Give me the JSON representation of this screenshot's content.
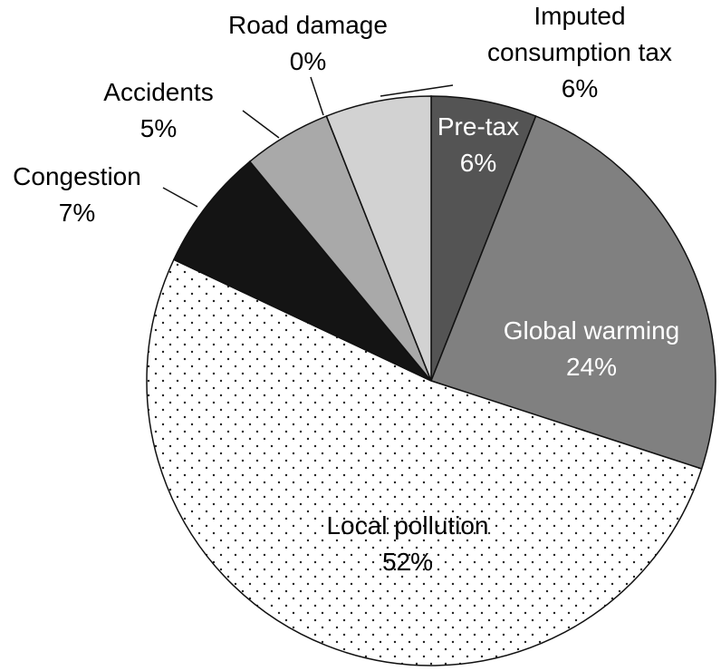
{
  "chart_data": {
    "type": "pie",
    "categories": [
      "Pre-tax",
      "Global warming",
      "Local pollution",
      "Congestion",
      "Accidents",
      "Road damage",
      "Imputed consumption tax"
    ],
    "values": [
      6,
      24,
      52,
      7,
      5,
      0,
      6
    ],
    "value_labels": [
      "6%",
      "24%",
      "52%",
      "7%",
      "5%",
      "0%",
      "6%"
    ],
    "colors": [
      "#545454",
      "#808080",
      "#ffffff",
      "#141414",
      "#a9a9a9",
      "#ffffff",
      "#d2d2d2"
    ],
    "patterns": [
      "solid",
      "solid",
      "dots",
      "solid",
      "solid",
      "solid",
      "solid"
    ],
    "start_angle": "top",
    "direction": "clockwise"
  }
}
